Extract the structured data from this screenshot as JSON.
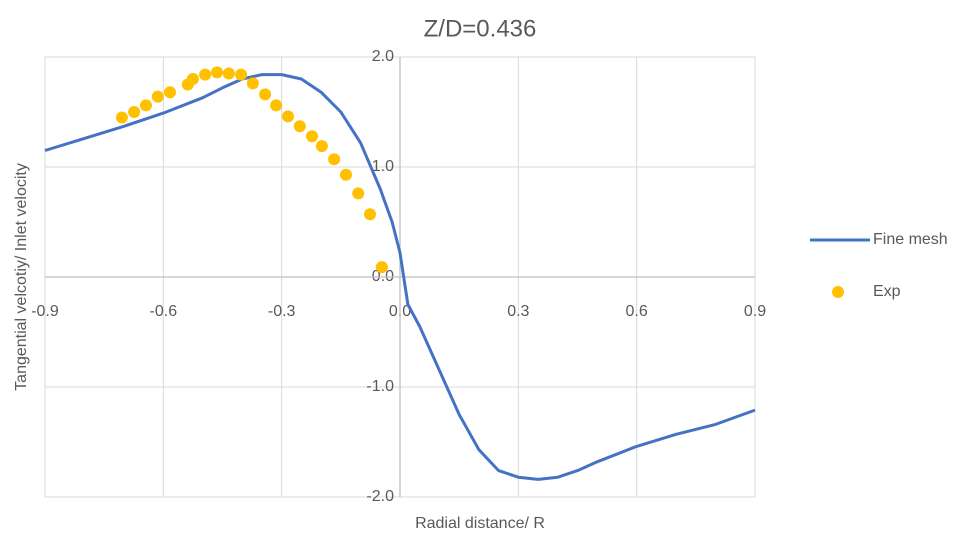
{
  "chart_data": {
    "type": "line",
    "title": "Z/D=0.436",
    "x_label": "Radial distance/ R",
    "y_label": "Tangential velcotiy/ Inlet velocity",
    "xlim": [
      -0.9,
      0.9
    ],
    "xticks": [
      -0.9,
      -0.6,
      -0.3,
      {
        "value": 0,
        "label": "0.0"
      },
      0.3,
      0.6,
      0.9
    ],
    "ylim": [
      -2,
      2
    ],
    "yticks": [
      {
        "value": 2,
        "label": "2.0"
      },
      {
        "value": 1,
        "label": "1.0"
      },
      {
        "value": 0,
        "label": "0.0"
      },
      {
        "value": -1,
        "label": "-1.0"
      },
      {
        "value": -2,
        "label": "-2.0"
      }
    ],
    "grid": true,
    "legend": "right",
    "series": [
      {
        "name": "Fine mesh",
        "type": "line",
        "color": "#4472c4",
        "x": [
          -0.9,
          -0.8,
          -0.7,
          -0.6,
          -0.5,
          -0.45,
          -0.4,
          -0.35,
          -0.3,
          -0.25,
          -0.2,
          -0.15,
          -0.1,
          -0.05,
          -0.02,
          0.0,
          0.02,
          0.05,
          0.1,
          0.15,
          0.2,
          0.25,
          0.3,
          0.35,
          0.4,
          0.45,
          0.5,
          0.6,
          0.7,
          0.8,
          0.9
        ],
        "values": [
          1.15,
          1.26,
          1.37,
          1.49,
          1.63,
          1.72,
          1.8,
          1.84,
          1.84,
          1.8,
          1.68,
          1.5,
          1.22,
          0.8,
          0.5,
          0.22,
          -0.25,
          -0.45,
          -0.85,
          -1.25,
          -1.57,
          -1.76,
          -1.82,
          -1.84,
          -1.82,
          -1.76,
          -1.68,
          -1.54,
          -1.43,
          -1.34,
          -1.21
        ]
      },
      {
        "name": "Exp",
        "type": "scatter",
        "color": "#ffc000",
        "x": [
          -0.705,
          -0.674,
          -0.644,
          -0.614,
          -0.583,
          -0.538,
          -0.525,
          -0.494,
          -0.464,
          -0.434,
          -0.403,
          -0.373,
          -0.342,
          -0.314,
          -0.284,
          -0.254,
          -0.223,
          -0.198,
          -0.167,
          -0.137,
          -0.106,
          -0.076,
          -0.046
        ],
        "values": [
          1.45,
          1.5,
          1.56,
          1.64,
          1.68,
          1.75,
          1.8,
          1.84,
          1.86,
          1.85,
          1.84,
          1.76,
          1.66,
          1.56,
          1.46,
          1.37,
          1.28,
          1.19,
          1.07,
          0.93,
          0.76,
          0.57,
          0.09
        ]
      }
    ]
  }
}
